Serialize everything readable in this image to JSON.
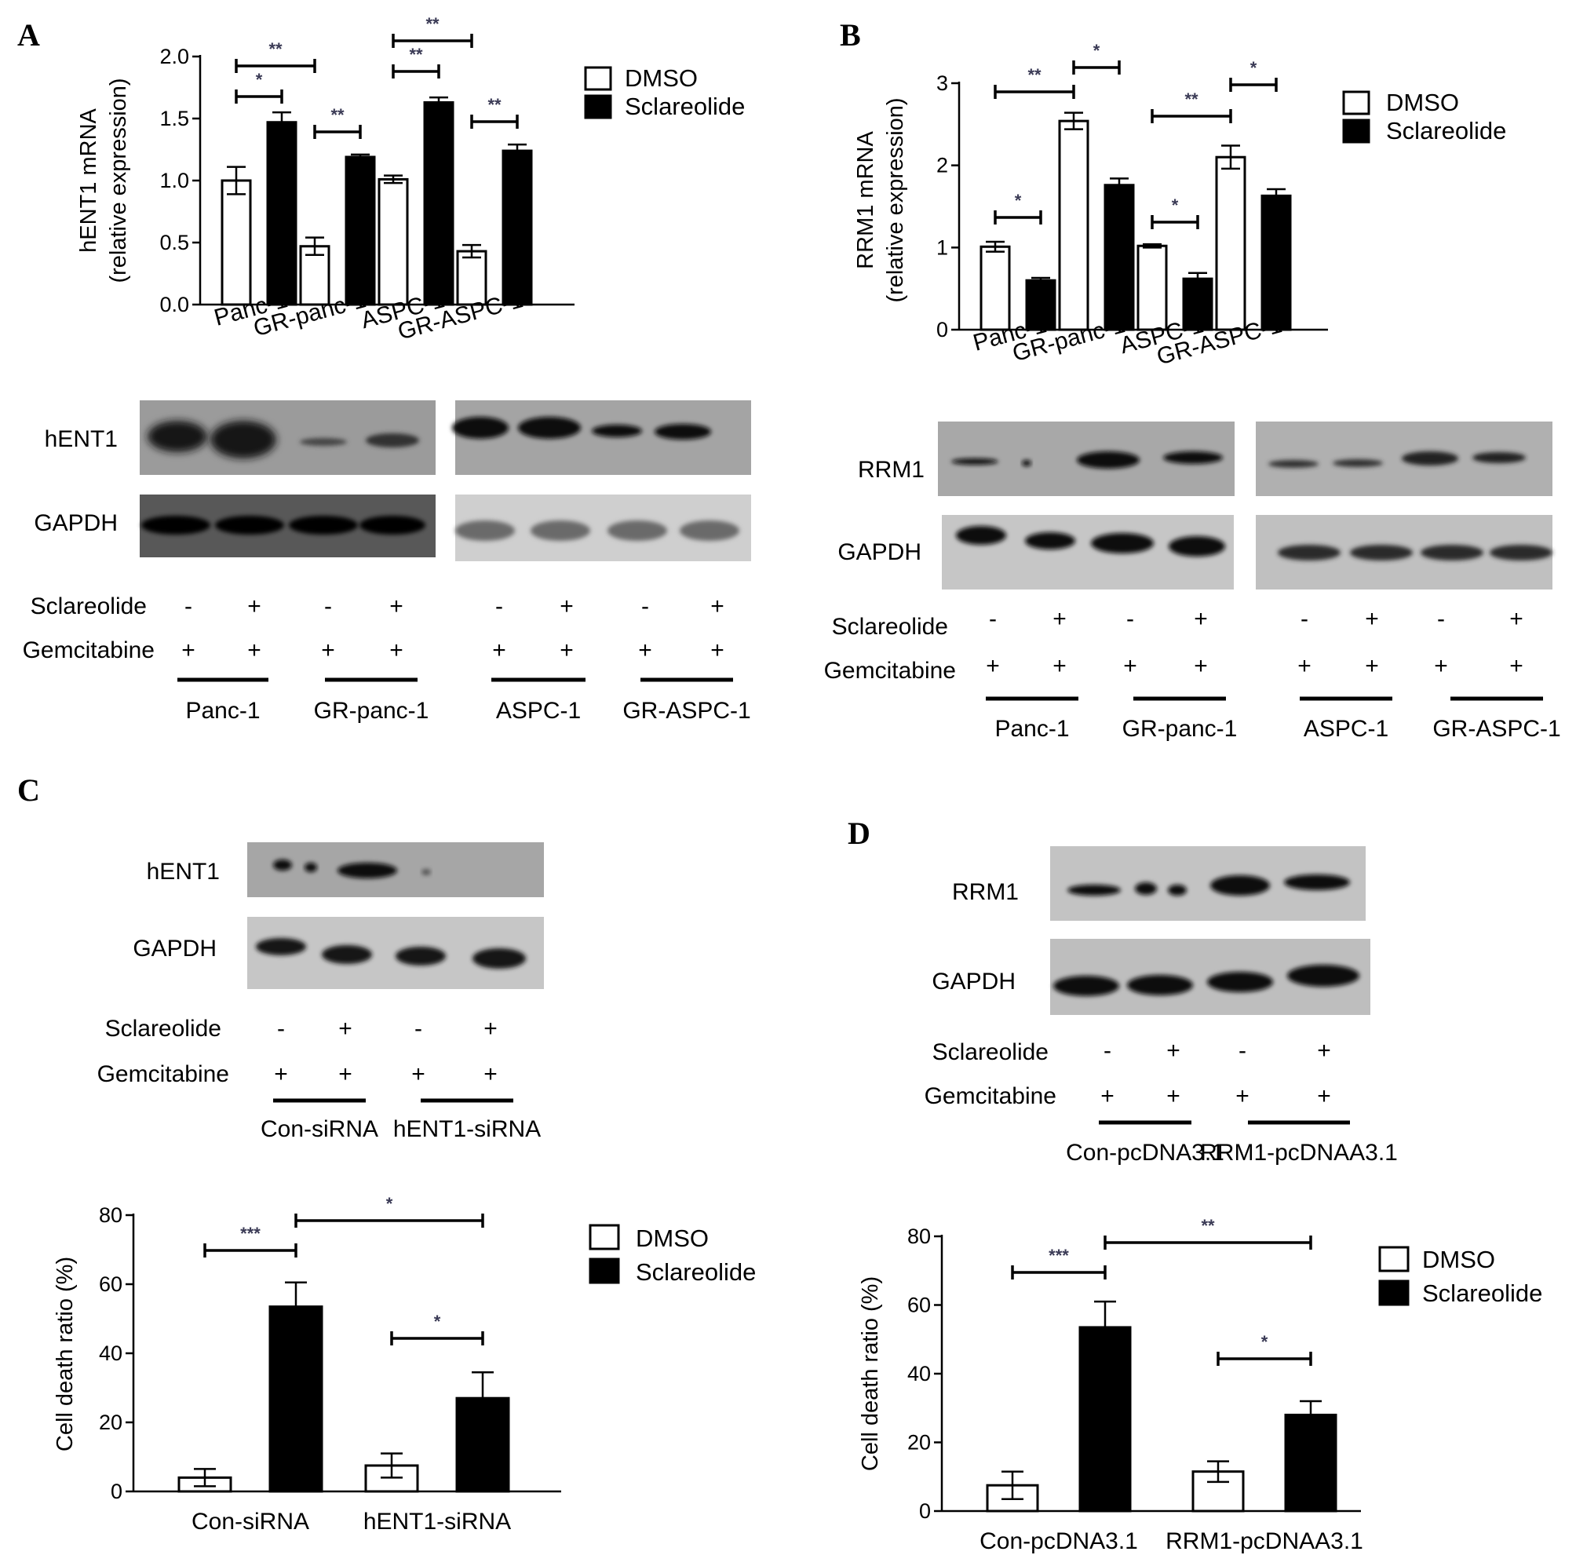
{
  "panels": {
    "A": {
      "letter": "A",
      "chart": {
        "type": "bar",
        "ylabel_line1": "hENT1 mRNA",
        "ylabel_line2": "(relative expression)",
        "categories": [
          "Panc-1",
          "GR-panc-1",
          "ASPC-1",
          "GR-ASPC-1"
        ],
        "ylim": [
          0,
          2.0
        ],
        "yticks": [
          "0.0",
          "0.5",
          "1.0",
          "1.5",
          "2.0"
        ],
        "yticks_values": [
          0,
          0.5,
          1.0,
          1.5,
          2.0
        ],
        "legend": [
          "DMSO",
          "Sclareolide"
        ],
        "series": [
          {
            "name": "DMSO",
            "values": [
              1.0,
              0.47,
              1.01,
              0.43
            ],
            "errors": [
              0.11,
              0.07,
              0.03,
              0.05
            ]
          },
          {
            "name": "Sclareolide",
            "values": [
              1.47,
              1.19,
              1.63,
              1.24
            ],
            "errors": [
              0.08,
              0.02,
              0.04,
              0.05
            ]
          }
        ],
        "significance": [
          {
            "from": [
              0,
              0
            ],
            "to": [
              0,
              1
            ],
            "label": "*"
          },
          {
            "from": [
              0,
              0
            ],
            "to": [
              1,
              0
            ],
            "label": "**"
          },
          {
            "from": [
              1,
              0
            ],
            "to": [
              1,
              1
            ],
            "label": "**"
          },
          {
            "from": [
              2,
              0
            ],
            "to": [
              2,
              1
            ],
            "label": "**"
          },
          {
            "from": [
              2,
              0
            ],
            "to": [
              3,
              0
            ],
            "label": "**"
          },
          {
            "from": [
              3,
              0
            ],
            "to": [
              3,
              1
            ],
            "label": "**"
          }
        ]
      },
      "blot": {
        "rows": [
          "hENT1",
          "GAPDH"
        ],
        "treatments": [
          "Sclareolide",
          "Gemcitabine"
        ],
        "sclareolide_signs": [
          "-",
          "+",
          "-",
          "+",
          "-",
          "+",
          "-",
          "+"
        ],
        "gemcitabine_signs": [
          "+",
          "+",
          "+",
          "+",
          "+",
          "+",
          "+",
          "+"
        ],
        "groups": [
          "Panc-1",
          "GR-panc-1",
          "ASPC-1",
          "GR-ASPC-1"
        ]
      }
    },
    "B": {
      "letter": "B",
      "chart": {
        "type": "bar",
        "ylabel_line1": "RRM1 mRNA",
        "ylabel_line2": "(relative expression)",
        "categories": [
          "Panc-1",
          "GR-panc-1",
          "ASPC-1",
          "GR-ASPC-1"
        ],
        "ylim": [
          0,
          3
        ],
        "yticks": [
          "0",
          "1",
          "2",
          "3"
        ],
        "yticks_values": [
          0,
          1,
          2,
          3
        ],
        "legend": [
          "DMSO",
          "Sclareolide"
        ],
        "series": [
          {
            "name": "DMSO",
            "values": [
              1.01,
              2.54,
              1.02,
              2.1
            ],
            "errors": [
              0.06,
              0.1,
              0.02,
              0.14
            ]
          },
          {
            "name": "Sclareolide",
            "values": [
              0.6,
              1.76,
              0.62,
              1.63
            ],
            "errors": [
              0.03,
              0.08,
              0.07,
              0.08
            ]
          }
        ],
        "significance": [
          {
            "from": [
              0,
              0
            ],
            "to": [
              0,
              1
            ],
            "label": "*"
          },
          {
            "from": [
              0,
              0
            ],
            "to": [
              1,
              0
            ],
            "label": "**"
          },
          {
            "from": [
              1,
              0
            ],
            "to": [
              1,
              1
            ],
            "label": "*"
          },
          {
            "from": [
              2,
              0
            ],
            "to": [
              2,
              1
            ],
            "label": "*"
          },
          {
            "from": [
              2,
              0
            ],
            "to": [
              3,
              0
            ],
            "label": "**"
          },
          {
            "from": [
              3,
              0
            ],
            "to": [
              3,
              1
            ],
            "label": "*"
          }
        ]
      },
      "blot": {
        "rows": [
          "RRM1",
          "GAPDH"
        ],
        "treatments": [
          "Sclareolide",
          "Gemcitabine"
        ],
        "sclareolide_signs": [
          "-",
          "+",
          "-",
          "+",
          "-",
          "+",
          "-",
          "+"
        ],
        "gemcitabine_signs": [
          "+",
          "+",
          "+",
          "+",
          "+",
          "+",
          "+",
          "+"
        ],
        "groups": [
          "Panc-1",
          "GR-panc-1",
          "ASPC-1",
          "GR-ASPC-1"
        ]
      }
    },
    "C": {
      "letter": "C",
      "blot": {
        "rows": [
          "hENT1",
          "GAPDH"
        ],
        "treatments": [
          "Sclareolide",
          "Gemcitabine"
        ],
        "sclareolide_signs": [
          "-",
          "+",
          "-",
          "+"
        ],
        "gemcitabine_signs": [
          "+",
          "+",
          "+",
          "+"
        ],
        "groups": [
          "Con-siRNA",
          "hENT1-siRNA"
        ]
      },
      "chart": {
        "type": "bar",
        "ylabel": "Cell death ratio (%)",
        "categories": [
          "Con-siRNA",
          "hENT1-siRNA"
        ],
        "ylim": [
          0,
          80
        ],
        "yticks": [
          "0",
          "20",
          "40",
          "60",
          "80"
        ],
        "yticks_values": [
          0,
          20,
          40,
          60,
          80
        ],
        "legend": [
          "DMSO",
          "Sclareolide"
        ],
        "series": [
          {
            "name": "DMSO",
            "values": [
              4,
              7.5
            ],
            "errors": [
              2.5,
              3.5
            ]
          },
          {
            "name": "Sclareolide",
            "values": [
              53.5,
              27
            ],
            "errors": [
              7,
              7.5
            ]
          }
        ],
        "significance": [
          {
            "from": [
              0,
              0
            ],
            "to": [
              0,
              1
            ],
            "label": "***"
          },
          {
            "from": [
              0,
              1
            ],
            "to": [
              1,
              1
            ],
            "label": "*"
          },
          {
            "from": [
              1,
              0
            ],
            "to": [
              1,
              1
            ],
            "label": "*"
          }
        ]
      }
    },
    "D": {
      "letter": "D",
      "blot": {
        "rows": [
          "RRM1",
          "GAPDH"
        ],
        "treatments": [
          "Sclareolide",
          "Gemcitabine"
        ],
        "sclareolide_signs": [
          "-",
          "+",
          "-",
          "+"
        ],
        "gemcitabine_signs": [
          "+",
          "+",
          "+",
          "+"
        ],
        "groups": [
          "Con-pcDNA3.1",
          "RRM1-pcDNAA3.1"
        ]
      },
      "chart": {
        "type": "bar",
        "ylabel": "Cell death ratio (%)",
        "categories": [
          "Con-pcDNA3.1",
          "RRM1-pcDNAA3.1"
        ],
        "ylim": [
          0,
          80
        ],
        "yticks": [
          "0",
          "20",
          "40",
          "60",
          "80"
        ],
        "yticks_values": [
          0,
          20,
          40,
          60,
          80
        ],
        "legend": [
          "DMSO",
          "Sclareolide"
        ],
        "series": [
          {
            "name": "DMSO",
            "values": [
              7.5,
              11.5
            ],
            "errors": [
              4,
              3
            ]
          },
          {
            "name": "Sclareolide",
            "values": [
              53.5,
              28
            ],
            "errors": [
              7.5,
              4
            ]
          }
        ],
        "significance": [
          {
            "from": [
              0,
              0
            ],
            "to": [
              0,
              1
            ],
            "label": "***"
          },
          {
            "from": [
              0,
              1
            ],
            "to": [
              1,
              1
            ],
            "label": "**"
          },
          {
            "from": [
              1,
              0
            ],
            "to": [
              1,
              1
            ],
            "label": "*"
          }
        ]
      }
    }
  },
  "colors": {
    "dmso_fill": "#ffffff",
    "sclareolide_fill": "#000000",
    "axis": "#000000",
    "sig_text": "#3a3a55"
  }
}
